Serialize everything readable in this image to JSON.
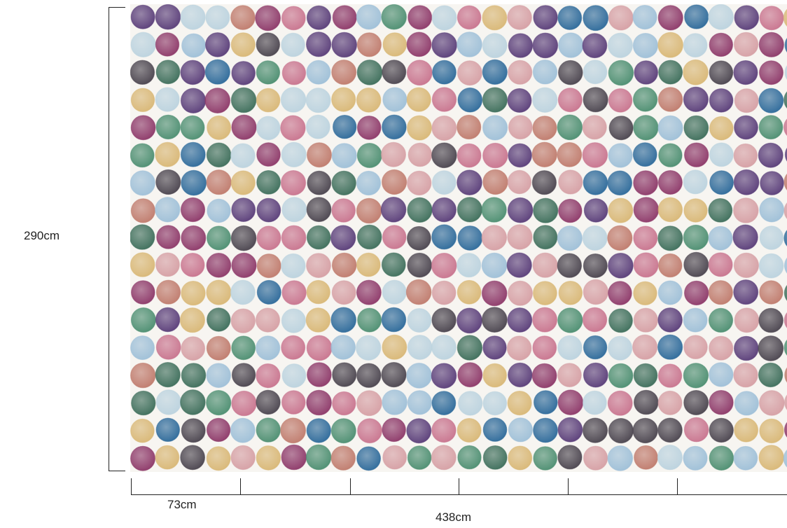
{
  "dimensions": {
    "height": "290cm",
    "panel_width": "73cm",
    "total_width": "438cm"
  },
  "pattern": {
    "name": "watercolor-dots",
    "palette": [
      "#d9b877",
      "#c9758f",
      "#8e3a6a",
      "#2f6b9b",
      "#4e8f72",
      "#5b3f7a",
      "#9fc0d8",
      "#bcd3df",
      "#c07c6e",
      "#4c4650",
      "#3f6f5c",
      "#d6a0a5"
    ]
  }
}
